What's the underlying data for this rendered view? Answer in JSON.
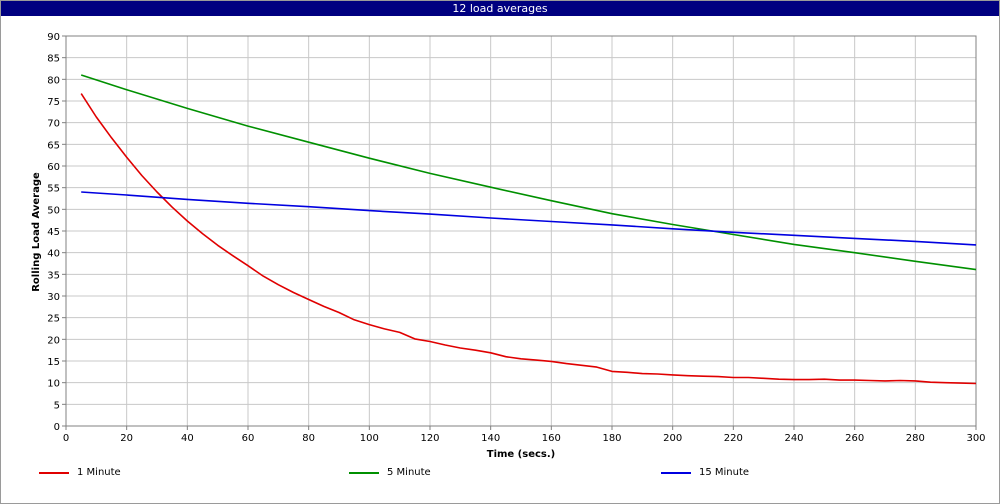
{
  "window": {
    "title": "12 load averages"
  },
  "chart_data": {
    "type": "line",
    "title": "12 load averages",
    "xlabel": "Time (secs.)",
    "ylabel": "Rolling Load Average",
    "xlim": [
      0,
      300
    ],
    "ylim": [
      0,
      90
    ],
    "x_ticks": [
      0,
      20,
      40,
      60,
      80,
      100,
      120,
      140,
      160,
      180,
      200,
      220,
      240,
      260,
      280,
      300
    ],
    "y_ticks": [
      0,
      5,
      10,
      15,
      20,
      25,
      30,
      35,
      40,
      45,
      50,
      55,
      60,
      65,
      70,
      75,
      80,
      85,
      90
    ],
    "grid": true,
    "legend_position": "bottom",
    "series": [
      {
        "name": "1 Minute",
        "color": "#e00000",
        "x": [
          5,
          10,
          15,
          20,
          25,
          30,
          35,
          40,
          45,
          50,
          55,
          60,
          65,
          70,
          75,
          80,
          85,
          90,
          95,
          100,
          105,
          110,
          115,
          120,
          125,
          130,
          135,
          140,
          145,
          150,
          155,
          160,
          165,
          170,
          175,
          180,
          185,
          190,
          195,
          200,
          205,
          210,
          215,
          220,
          225,
          230,
          235,
          240,
          245,
          250,
          255,
          260,
          265,
          270,
          275,
          280,
          285,
          290,
          295,
          300
        ],
        "values": [
          76.7,
          71.3,
          66.5,
          62.0,
          57.8,
          54.0,
          50.5,
          47.3,
          44.4,
          41.7,
          39.3,
          37.0,
          34.6,
          32.6,
          30.8,
          29.2,
          27.6,
          26.2,
          24.5,
          23.4,
          22.4,
          21.6,
          20.1,
          19.5,
          18.7,
          18.0,
          17.5,
          16.9,
          16.0,
          15.5,
          15.2,
          14.9,
          14.4,
          14.0,
          13.6,
          12.6,
          12.4,
          12.1,
          12.0,
          11.8,
          11.6,
          11.5,
          11.4,
          11.2,
          11.2,
          11.0,
          10.8,
          10.7,
          10.7,
          10.8,
          10.6,
          10.6,
          10.5,
          10.4,
          10.5,
          10.4,
          10.1,
          10.0,
          9.9,
          9.8
        ]
      },
      {
        "name": "5 Minute",
        "color": "#009000",
        "x": [
          5,
          20,
          40,
          60,
          80,
          100,
          120,
          140,
          160,
          180,
          200,
          220,
          240,
          260,
          280,
          300
        ],
        "values": [
          81.0,
          77.6,
          73.3,
          69.2,
          65.5,
          61.8,
          58.3,
          55.1,
          52.0,
          49.0,
          46.5,
          44.2,
          41.9,
          40.0,
          38.0,
          36.1
        ]
      },
      {
        "name": "15 Minute",
        "color": "#0000e0",
        "x": [
          5,
          20,
          40,
          60,
          80,
          100,
          120,
          140,
          160,
          180,
          200,
          220,
          240,
          260,
          280,
          300
        ],
        "values": [
          54.0,
          53.3,
          52.3,
          51.4,
          50.6,
          49.7,
          48.9,
          48.0,
          47.2,
          46.4,
          45.5,
          44.7,
          44.0,
          43.3,
          42.6,
          41.8
        ]
      }
    ]
  }
}
